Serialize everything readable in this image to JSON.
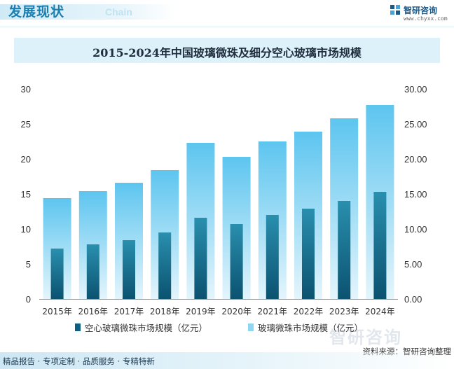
{
  "header": {
    "title": "发展现状",
    "subtitle": "Chain",
    "brand_name": "智研咨询",
    "brand_url": "www.chyxx.com"
  },
  "colors": {
    "accent": "#1a7fb0",
    "hollow_top": "#2a8fae",
    "hollow_bottom": "#0b5270",
    "glass_top": "#5dc5ef",
    "glass_bottom": "#e4f5fc"
  },
  "chart_data": {
    "type": "bar",
    "title": "2015-2024年中国玻璃微珠及细分空心玻璃市场规模",
    "categories": [
      "2015年",
      "2016年",
      "2017年",
      "2018年",
      "2019年",
      "2020年",
      "2021年",
      "2022年",
      "2023年",
      "2024年"
    ],
    "series": [
      {
        "name": "空心玻璃微珠市场规模（亿元）",
        "values": [
          7.2,
          7.8,
          8.4,
          9.5,
          11.6,
          10.7,
          12.0,
          12.9,
          14.0,
          15.3
        ]
      },
      {
        "name": "玻璃微珠市场规模（亿元）",
        "values": [
          14.4,
          15.4,
          16.6,
          18.4,
          22.3,
          20.3,
          22.5,
          23.9,
          25.8,
          27.7
        ]
      }
    ],
    "yleft": {
      "ylim": [
        0,
        30
      ],
      "ticks": [
        "0",
        "5",
        "10",
        "15",
        "20",
        "25",
        "30"
      ]
    },
    "yright": {
      "ylim": [
        0,
        30
      ],
      "ticks": [
        "0.00",
        "5.00",
        "10.00",
        "15.00",
        "20.00",
        "25.00",
        "30.00"
      ]
    },
    "xlabel": "",
    "ylabel": "",
    "legend": "bottom"
  },
  "watermark": "智研咨询",
  "source": "资料来源：智研咨询整理",
  "footer": "精品报告 · 专项定制 · 品质服务 · 专精特新"
}
